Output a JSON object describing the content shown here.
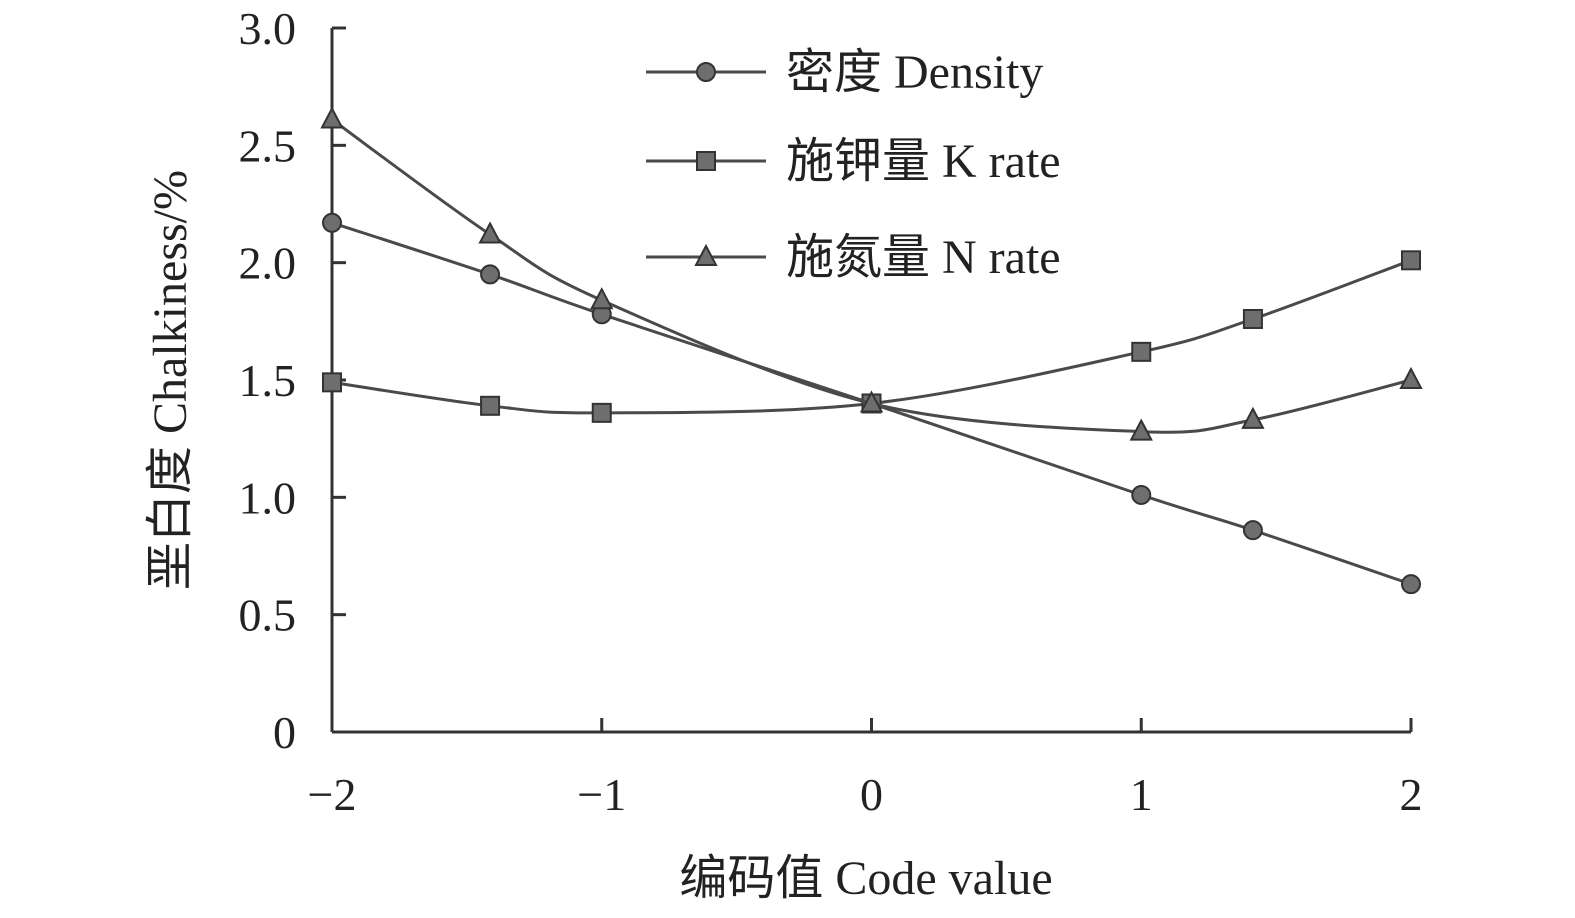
{
  "chart_data": {
    "type": "line",
    "xlabel": "编码值 Code value",
    "ylabel": "垩白度 Chalkiness/%",
    "xlim": [
      -2,
      2
    ],
    "ylim": [
      0,
      3.0
    ],
    "x_ticks": [
      -2,
      -1,
      0,
      1,
      2
    ],
    "x_tick_labels": [
      "−2",
      "−1",
      "0",
      "1",
      "2"
    ],
    "y_ticks": [
      0,
      0.5,
      1.0,
      1.5,
      2.0,
      2.5,
      3.0
    ],
    "y_tick_labels": [
      "0",
      "0.5",
      "1.0",
      "1.5",
      "2.0",
      "2.5",
      "3.0"
    ],
    "grid": false,
    "legend_position": "top-right",
    "series": [
      {
        "name": "密度 Density",
        "marker": "circle",
        "x": [
          -2,
          -1.414,
          -1,
          0,
          1,
          1.414,
          2
        ],
        "y": [
          2.17,
          1.95,
          1.78,
          1.4,
          1.01,
          0.86,
          0.63
        ]
      },
      {
        "name": "施钾量 K rate",
        "marker": "square",
        "x": [
          -2,
          -1.414,
          -1,
          0,
          1,
          1.414,
          2
        ],
        "y": [
          1.49,
          1.39,
          1.36,
          1.4,
          1.62,
          1.76,
          2.01
        ]
      },
      {
        "name": "施氮量 N rate",
        "marker": "triangle",
        "x": [
          -2,
          -1.414,
          -1,
          0,
          1,
          1.414,
          2
        ],
        "y": [
          2.61,
          2.12,
          1.84,
          1.4,
          1.28,
          1.33,
          1.5
        ]
      }
    ],
    "colors": {
      "line": "#4a4a4a",
      "marker_fill": "#6e6e6e",
      "marker_stroke": "#333333",
      "axis": "#333333",
      "text": "#222222"
    }
  }
}
